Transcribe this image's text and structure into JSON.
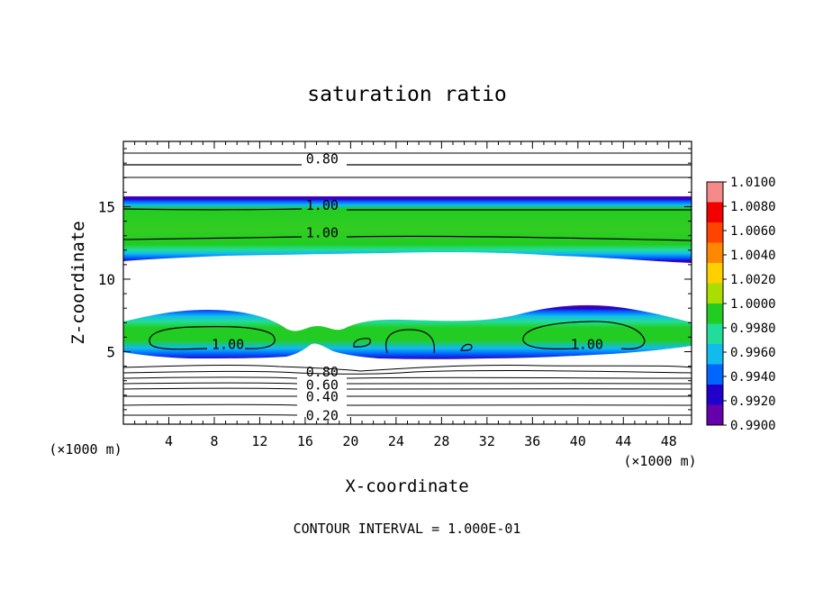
{
  "chart_data": {
    "type": "contour",
    "title": "saturation ratio",
    "xlabel": "X-coordinate",
    "ylabel": "Z-coordinate",
    "x_unit": "(×1000 m)",
    "y_unit": "(×1000 m)",
    "footer": "CONTOUR INTERVAL = 1.000E-01",
    "xlim": [
      0,
      50
    ],
    "ylim": [
      0,
      19.5
    ],
    "x_ticks": [
      4,
      8,
      12,
      16,
      20,
      24,
      28,
      32,
      36,
      40,
      44,
      48
    ],
    "y_ticks": [
      5,
      10,
      15
    ],
    "colorbar": {
      "labels": [
        "1.0100",
        "1.0080",
        "1.0060",
        "1.0040",
        "1.0020",
        "1.0000",
        "0.9980",
        "0.9960",
        "0.9940",
        "0.9920",
        "0.9900"
      ],
      "colors": [
        "#f48a8a",
        "#f00000",
        "#ff4400",
        "#ff8800",
        "#ffd000",
        "#aadd00",
        "#22cc22",
        "#22dd99",
        "#11bbee",
        "#0066ff",
        "#2200cc",
        "#6600aa"
      ]
    },
    "contour_labels": [
      {
        "text": "0.80",
        "x": 17.5,
        "z": 18.3
      },
      {
        "text": "1.00",
        "x": 17.5,
        "z": 15.1
      },
      {
        "text": "1.00",
        "x": 17.5,
        "z": 13.2
      },
      {
        "text": "1.00",
        "x": 9.2,
        "z": 5.5
      },
      {
        "text": "1.00",
        "x": 40.8,
        "z": 5.5
      },
      {
        "text": "0.80",
        "x": 17.5,
        "z": 3.6
      },
      {
        "text": "0.60",
        "x": 17.5,
        "z": 2.7
      },
      {
        "text": "0.40",
        "x": 17.5,
        "z": 1.9
      },
      {
        "text": "0.20",
        "x": 17.5,
        "z": 0.6
      }
    ]
  }
}
